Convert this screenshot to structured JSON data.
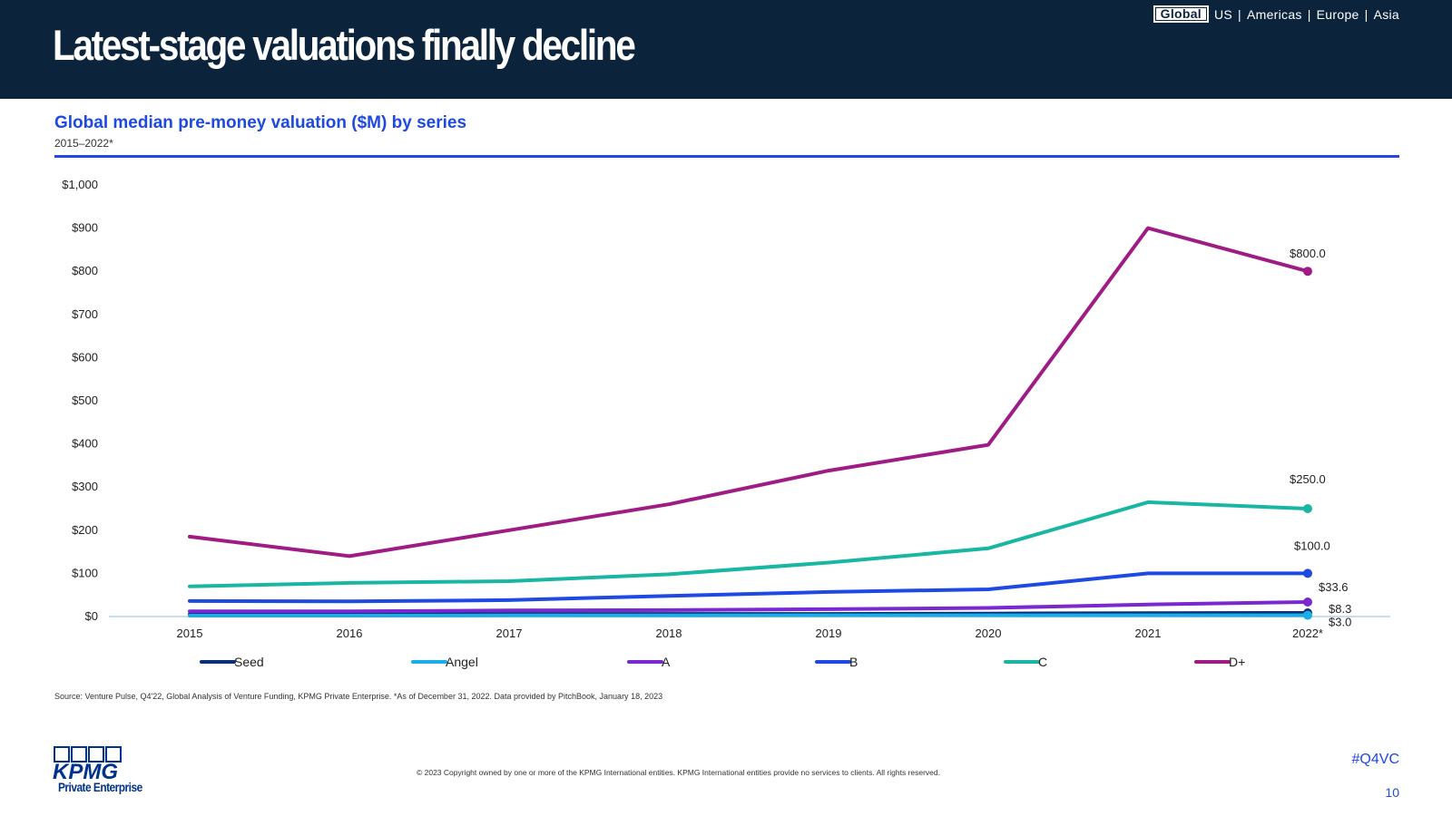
{
  "header": {
    "title": "Latest-stage valuations finally decline",
    "regions": {
      "selected": "Global",
      "others": [
        "US",
        "Americas",
        "Europe",
        "Asia"
      ]
    }
  },
  "chart_data": {
    "type": "line",
    "title": "Global median pre-money valuation ($M) by series",
    "subtitle": "2015–2022*",
    "x": [
      "2015",
      "2016",
      "2017",
      "2018",
      "2019",
      "2020",
      "2021",
      "2022*"
    ],
    "yticks": [
      "$0",
      "$100",
      "$200",
      "$300",
      "$400",
      "$500",
      "$600",
      "$700",
      "$800",
      "$900",
      "$1,000"
    ],
    "ylim": [
      0,
      1000
    ],
    "legend_position": "bottom",
    "grid": false,
    "series": [
      {
        "name": "Seed",
        "color": "#0c2f7a",
        "values": [
          5,
          5,
          6,
          6,
          6,
          7,
          8,
          8.3
        ],
        "end_label": "$8.3"
      },
      {
        "name": "Angel",
        "color": "#1aaee8",
        "values": [
          2,
          2,
          2.5,
          2.5,
          3,
          3,
          3,
          3.0
        ],
        "end_label": "$3.0"
      },
      {
        "name": "A",
        "color": "#7a28cf",
        "values": [
          12,
          12,
          14,
          15,
          17,
          20,
          28,
          33.6
        ],
        "end_label": "$33.6"
      },
      {
        "name": "B",
        "color": "#1e49e2",
        "values": [
          36,
          35,
          38,
          48,
          57,
          63,
          100,
          100.0
        ],
        "end_label": "$100.0"
      },
      {
        "name": "C",
        "color": "#19b6a3",
        "values": [
          70,
          78,
          82,
          98,
          125,
          158,
          265,
          250.0
        ],
        "end_label": "$250.0"
      },
      {
        "name": "D+",
        "color": "#a01c85",
        "values": [
          185,
          140,
          200,
          260,
          338,
          398,
          900,
          800.0
        ],
        "end_label": "$800.0"
      }
    ]
  },
  "footer": {
    "source": "Source: Venture Pulse, Q4'22, Global Analysis of Venture Funding, KPMG Private Enterprise. *As of December 31, 2022. Data provided by PitchBook, January 18, 2023",
    "copyright": "© 2023 Copyright owned by one or more of the KPMG International entities. KPMG International entities provide no services to clients. All rights reserved.",
    "hashtag": "#Q4VC",
    "page_number": "10",
    "logo_text": "KPMG",
    "logo_subtext": "Private Enterprise"
  }
}
